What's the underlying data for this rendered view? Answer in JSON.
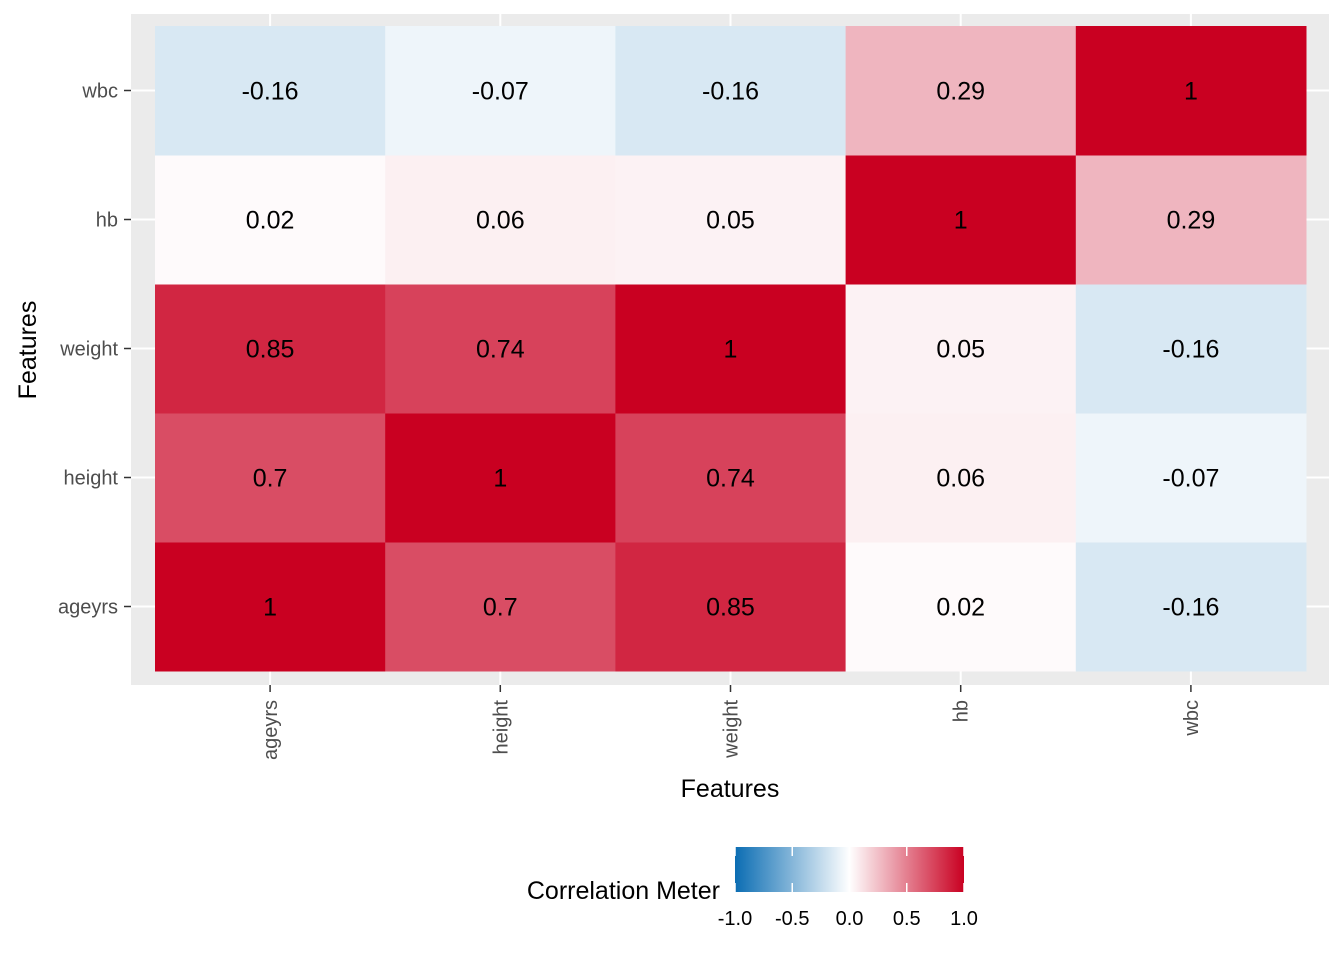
{
  "chart_data": {
    "type": "heatmap",
    "x_categories": [
      "ageyrs",
      "height",
      "weight",
      "hb",
      "wbc"
    ],
    "y_categories": [
      "ageyrs",
      "height",
      "weight",
      "hb",
      "wbc"
    ],
    "matrix": [
      [
        1,
        0.7,
        0.85,
        0.02,
        -0.16
      ],
      [
        0.7,
        1,
        0.74,
        0.06,
        -0.07
      ],
      [
        0.85,
        0.74,
        1,
        0.05,
        -0.16
      ],
      [
        0.02,
        0.06,
        0.05,
        1,
        0.29
      ],
      [
        -0.16,
        -0.07,
        -0.16,
        0.29,
        1
      ]
    ],
    "cell_labels": [
      [
        "1",
        "0.7",
        "0.85",
        "0.02",
        "-0.16"
      ],
      [
        "0.7",
        "1",
        "0.74",
        "0.06",
        "-0.07"
      ],
      [
        "0.85",
        "0.74",
        "1",
        "0.05",
        "-0.16"
      ],
      [
        "0.02",
        "0.06",
        "0.05",
        "1",
        "0.29"
      ],
      [
        "-0.16",
        "-0.07",
        "-0.16",
        "0.29",
        "1"
      ]
    ],
    "xlabel": "Features",
    "ylabel": "Features",
    "legend": {
      "title": "Correlation Meter",
      "position": "bottom",
      "range": [
        -1,
        1
      ],
      "ticks": [
        -1,
        -0.5,
        0,
        0.5,
        1
      ],
      "tick_labels": [
        "-1.0",
        "-0.5",
        "0.0",
        "0.5",
        "1.0"
      ],
      "low_color": "#0b6db3",
      "mid_color": "#ffffff",
      "high_color": "#c90021"
    },
    "panel_background": "#ebebeb",
    "grid": true
  }
}
